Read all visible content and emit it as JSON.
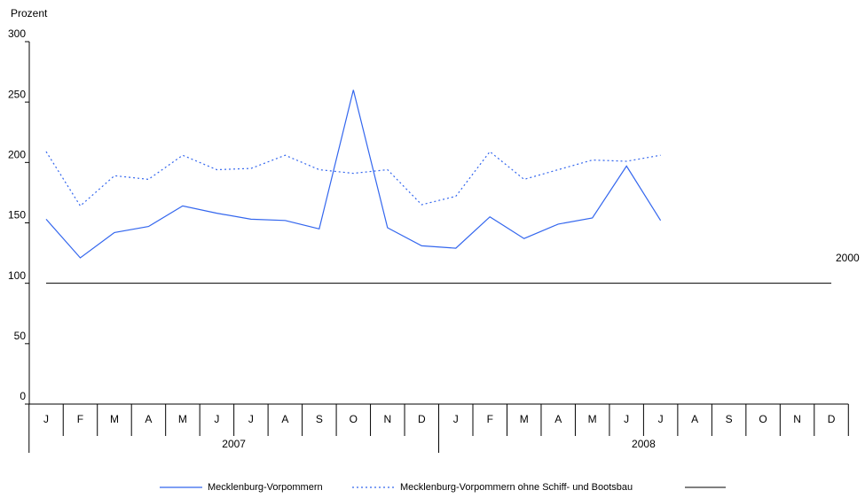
{
  "chart_data": {
    "type": "line",
    "y_label": "Prozent",
    "categories": [
      "J",
      "F",
      "M",
      "A",
      "M",
      "J",
      "J",
      "A",
      "S",
      "O",
      "N",
      "D",
      "J",
      "F",
      "M",
      "A",
      "M",
      "J",
      "J",
      "A",
      "S",
      "O",
      "N",
      "D"
    ],
    "year_groups": [
      "2007",
      "2008"
    ],
    "series": [
      {
        "name": "Mecklenburg-Vorpommern",
        "color": "#3366ee",
        "dash": "solid",
        "values": [
          153,
          121,
          142,
          147,
          164,
          158,
          153,
          152,
          145,
          260,
          146,
          131,
          129,
          155,
          137,
          149,
          154,
          197,
          152,
          null,
          null,
          null,
          null,
          null
        ]
      },
      {
        "name": "Mecklenburg-Vorpommern ohne Schiff- und Bootsbau",
        "color": "#3366ee",
        "dash": "dotted",
        "values": [
          209,
          164,
          189,
          186,
          206,
          194,
          195,
          206,
          194,
          191,
          194,
          165,
          172,
          209,
          186,
          194,
          202,
          201,
          206,
          null,
          null,
          null,
          null,
          null
        ]
      }
    ],
    "reference_line": {
      "value": 100,
      "label": "2000",
      "color": "#000000"
    },
    "ylim": [
      0,
      300
    ],
    "yticks": [
      0,
      50,
      100,
      150,
      200,
      250,
      300
    ]
  }
}
